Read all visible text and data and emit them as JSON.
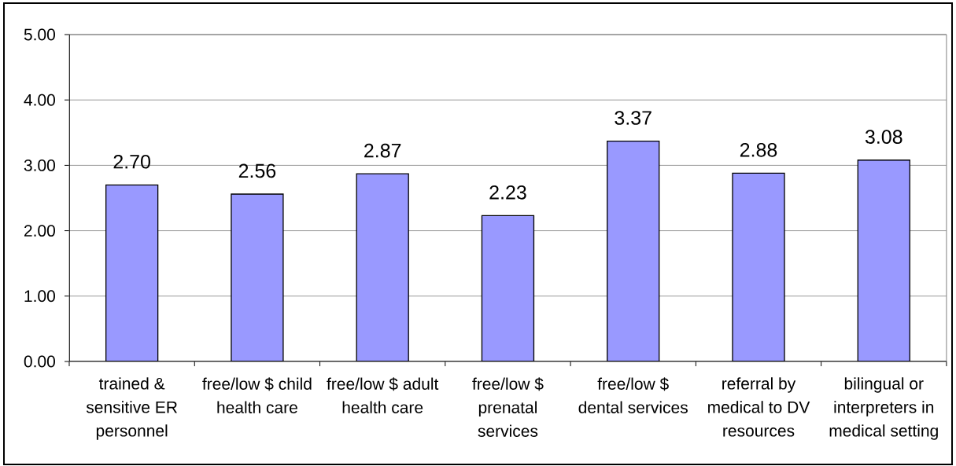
{
  "chart_data": {
    "type": "bar",
    "categories": [
      "trained & sensitive ER personnel",
      "free/low $ child health care",
      "free/low $ adult health care",
      "free/low $ prenatal services",
      "free/low $ dental services",
      "referral by medical to DV resources",
      "bilingual or interpreters in medical setting"
    ],
    "values": [
      2.7,
      2.56,
      2.87,
      2.23,
      3.37,
      2.88,
      3.08
    ],
    "value_labels": [
      "2.70",
      "2.56",
      "2.87",
      "2.23",
      "3.37",
      "2.88",
      "3.08"
    ],
    "color": "#9999ff",
    "ylim": [
      0,
      5
    ],
    "yticks": [
      {
        "value": 0,
        "label": "0.00"
      },
      {
        "value": 1,
        "label": "1.00"
      },
      {
        "value": 2,
        "label": "2.00"
      },
      {
        "value": 3,
        "label": "3.00"
      },
      {
        "value": 4,
        "label": "4.00"
      },
      {
        "value": 5,
        "label": "5.00"
      }
    ],
    "grid": "y"
  }
}
